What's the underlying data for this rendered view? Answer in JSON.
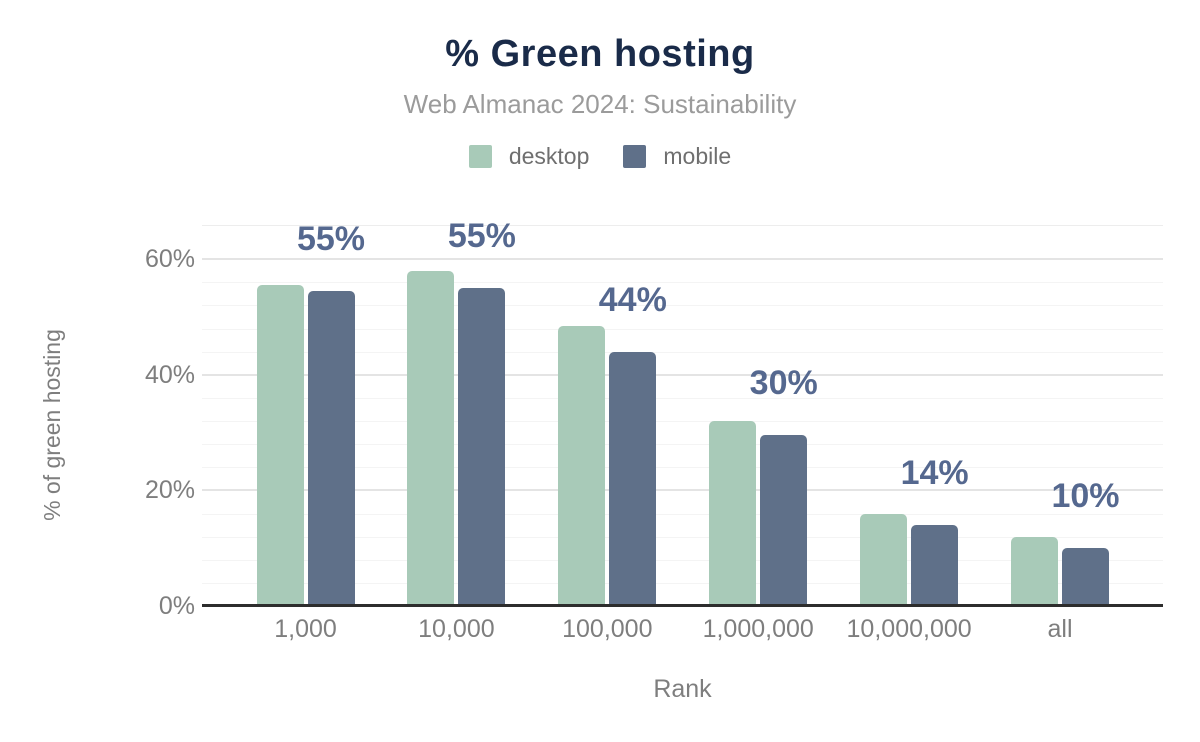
{
  "title": "% Green hosting",
  "subtitle": "Web Almanac 2024: Sustainability",
  "legend": [
    {
      "label": "desktop",
      "color": "#a8cab8"
    },
    {
      "label": "mobile",
      "color": "#5f7089"
    }
  ],
  "x_axis_title": "Rank",
  "y_axis_title": "% of green hosting",
  "chart_data": {
    "type": "bar",
    "title": "% Green hosting",
    "subtitle": "Web Almanac 2024: Sustainability",
    "categories": [
      "1,000",
      "10,000",
      "100,000",
      "1,000,000",
      "10,000,000",
      "all"
    ],
    "series": [
      {
        "name": "desktop",
        "color": "#a8cab8",
        "values": [
          55.5,
          58,
          48.5,
          32,
          16,
          12
        ]
      },
      {
        "name": "mobile",
        "color": "#5f7089",
        "values": [
          54.5,
          55,
          44,
          29.5,
          14,
          10
        ]
      }
    ],
    "bar_labels": [
      "55%",
      "55%",
      "44%",
      "30%",
      "14%",
      "10%"
    ],
    "annotation_series": "mobile",
    "xlabel": "Rank",
    "ylabel": "% of green hosting",
    "ylim": [
      0,
      66
    ],
    "y_ticks": [
      {
        "value": 0,
        "label": "0%"
      },
      {
        "value": 20,
        "label": "20%"
      },
      {
        "value": 40,
        "label": "40%"
      },
      {
        "value": 60,
        "label": "60%"
      }
    ],
    "grid": {
      "major_step": 20,
      "minor_step": 4,
      "grid_on": true
    },
    "legend_position": "top"
  },
  "colors": {
    "title": "#1a2b49",
    "subtitle": "#9b9b9b",
    "legend_text": "#6f6f6f",
    "axis_text": "#7e7e7e",
    "annotation": "#55688f",
    "axis_line": "#2d2d2d",
    "grid_major": "#e4e4e4",
    "grid_minor": "#f4f4f4",
    "grid_top": "#ededed",
    "background": "#ffffff"
  }
}
